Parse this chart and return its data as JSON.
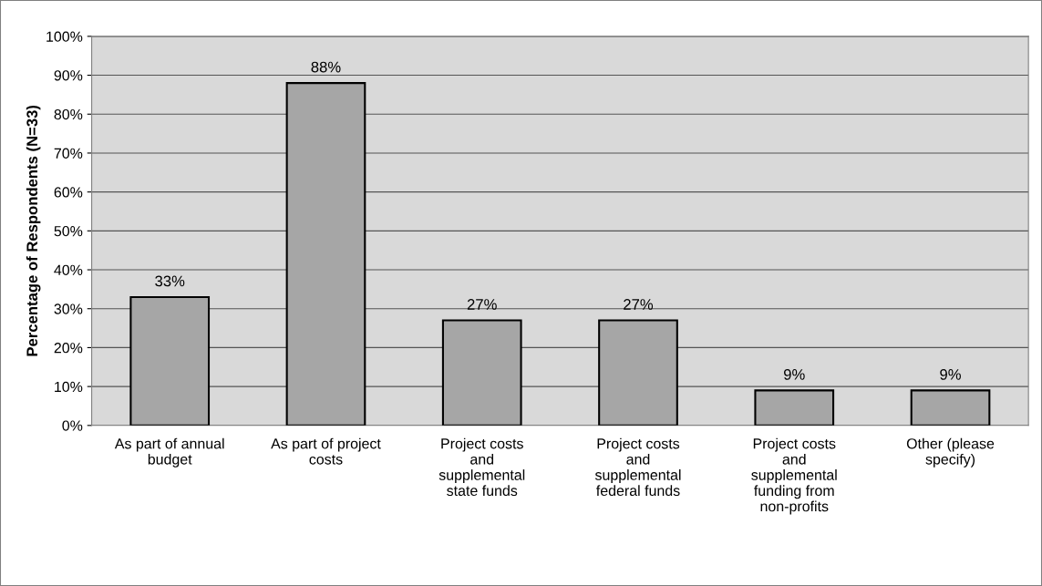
{
  "chart_data": {
    "type": "bar",
    "ylabel": "Percentage of Respondents (N=33)",
    "categories": [
      "As part of annual\nbudget",
      "As part of project\ncosts",
      "Project costs\nand\nsupplemental\nstate funds",
      "Project costs\nand\nsupplemental\nfederal funds",
      "Project costs\nand\nsupplemental\nfunding from\nnon-profits",
      "Other (please\nspecify)"
    ],
    "values": [
      33,
      88,
      27,
      27,
      9,
      9
    ],
    "value_labels": [
      "33%",
      "88%",
      "27%",
      "27%",
      "9%",
      "9%"
    ],
    "color": "#a6a6a6",
    "ylim": [
      0,
      100
    ],
    "yticks": [
      {
        "value": 0,
        "label": "0%"
      },
      {
        "value": 10,
        "label": "10%"
      },
      {
        "value": 20,
        "label": "20%"
      },
      {
        "value": 30,
        "label": "30%"
      },
      {
        "value": 40,
        "label": "40%"
      },
      {
        "value": 50,
        "label": "50%"
      },
      {
        "value": 60,
        "label": "60%"
      },
      {
        "value": 70,
        "label": "70%"
      },
      {
        "value": 80,
        "label": "80%"
      },
      {
        "value": 90,
        "label": "90%"
      },
      {
        "value": 100,
        "label": "100%"
      }
    ],
    "grid": "y"
  }
}
